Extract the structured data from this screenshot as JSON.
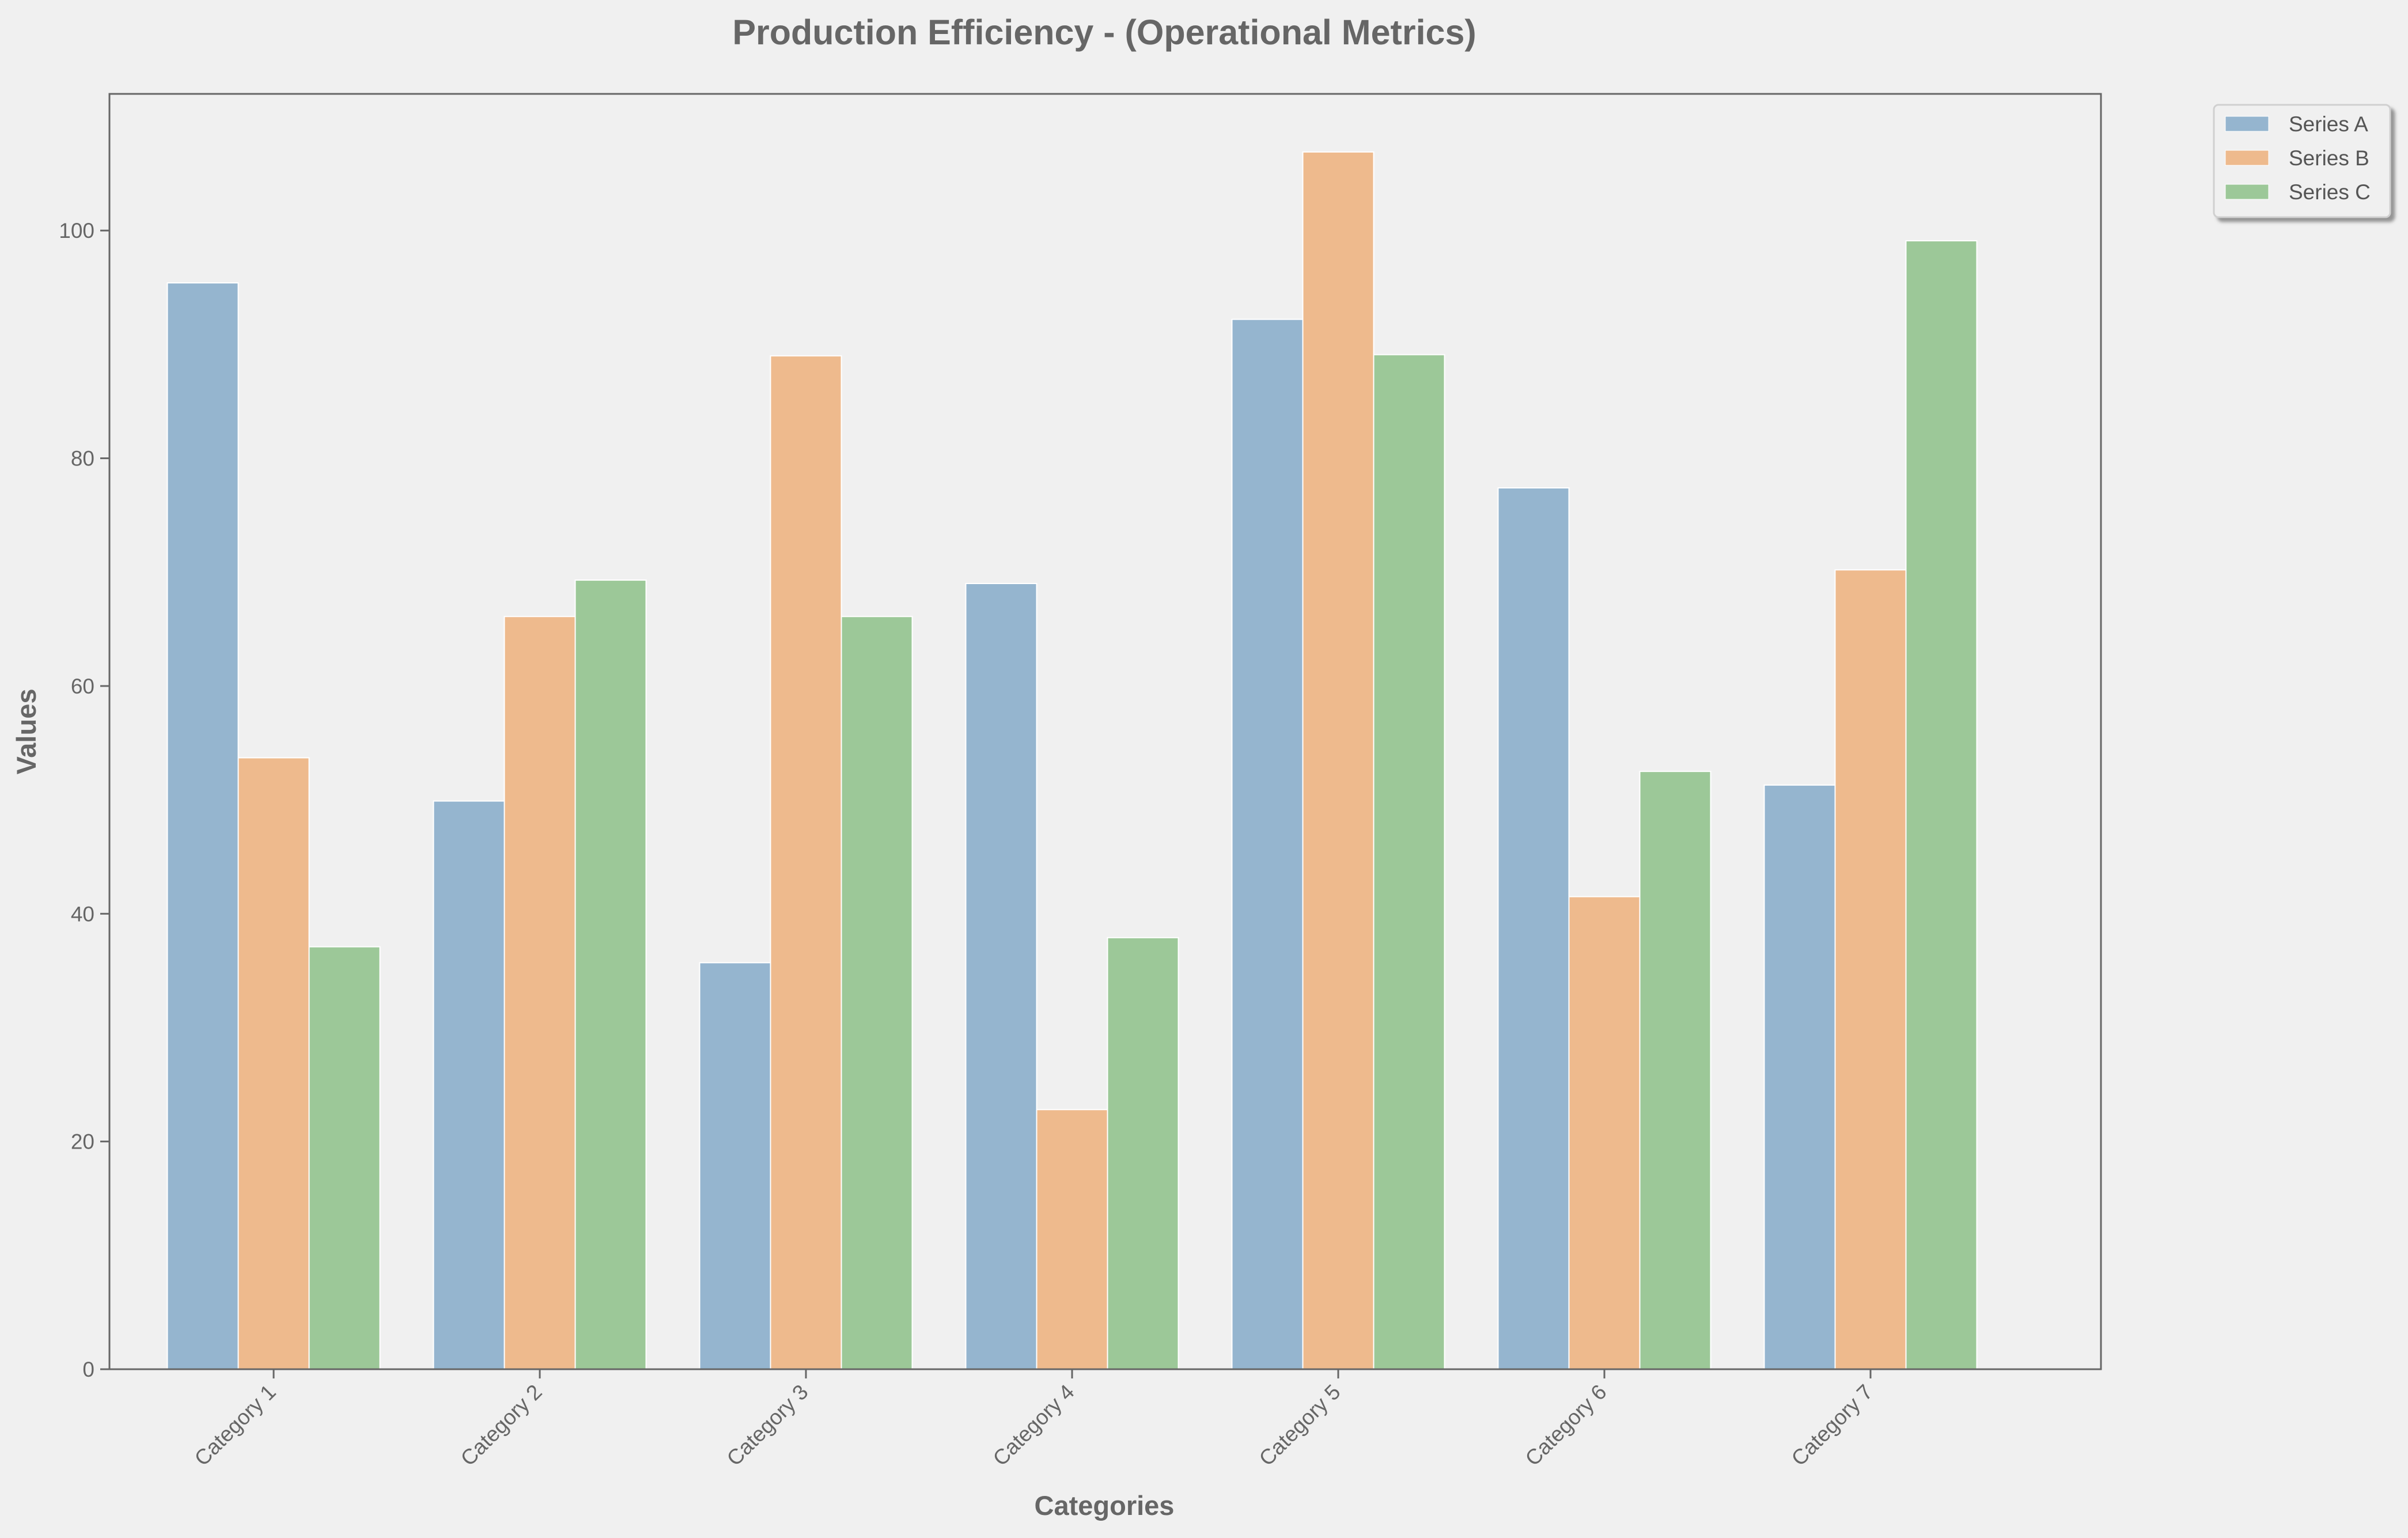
{
  "chart_data": {
    "type": "bar",
    "title": "Production Efficiency - (Operational Metrics)",
    "xlabel": "Categories",
    "ylabel": "Values",
    "categories": [
      "Category 1",
      "Category 2",
      "Category 3",
      "Category 4",
      "Category 5",
      "Category 6",
      "Category 7"
    ],
    "series": [
      {
        "name": "Series A",
        "color": "#95b5cf",
        "values": [
          95.4,
          49.9,
          35.7,
          69.0,
          92.2,
          77.4,
          51.3
        ]
      },
      {
        "name": "Series B",
        "color": "#eeba8d",
        "values": [
          53.7,
          66.1,
          89.0,
          22.8,
          106.9,
          41.5,
          70.2
        ]
      },
      {
        "name": "Series C",
        "color": "#9cc898",
        "values": [
          37.1,
          69.3,
          66.1,
          37.9,
          89.1,
          52.5,
          99.1
        ]
      }
    ],
    "ylim": [
      0,
      112
    ],
    "yticks": [
      0,
      20,
      40,
      60,
      80,
      100
    ],
    "ytick_labels": [
      "0",
      "20",
      "40",
      "60",
      "80",
      "100"
    ],
    "grid": false,
    "legend_position": "outside-top-right"
  }
}
